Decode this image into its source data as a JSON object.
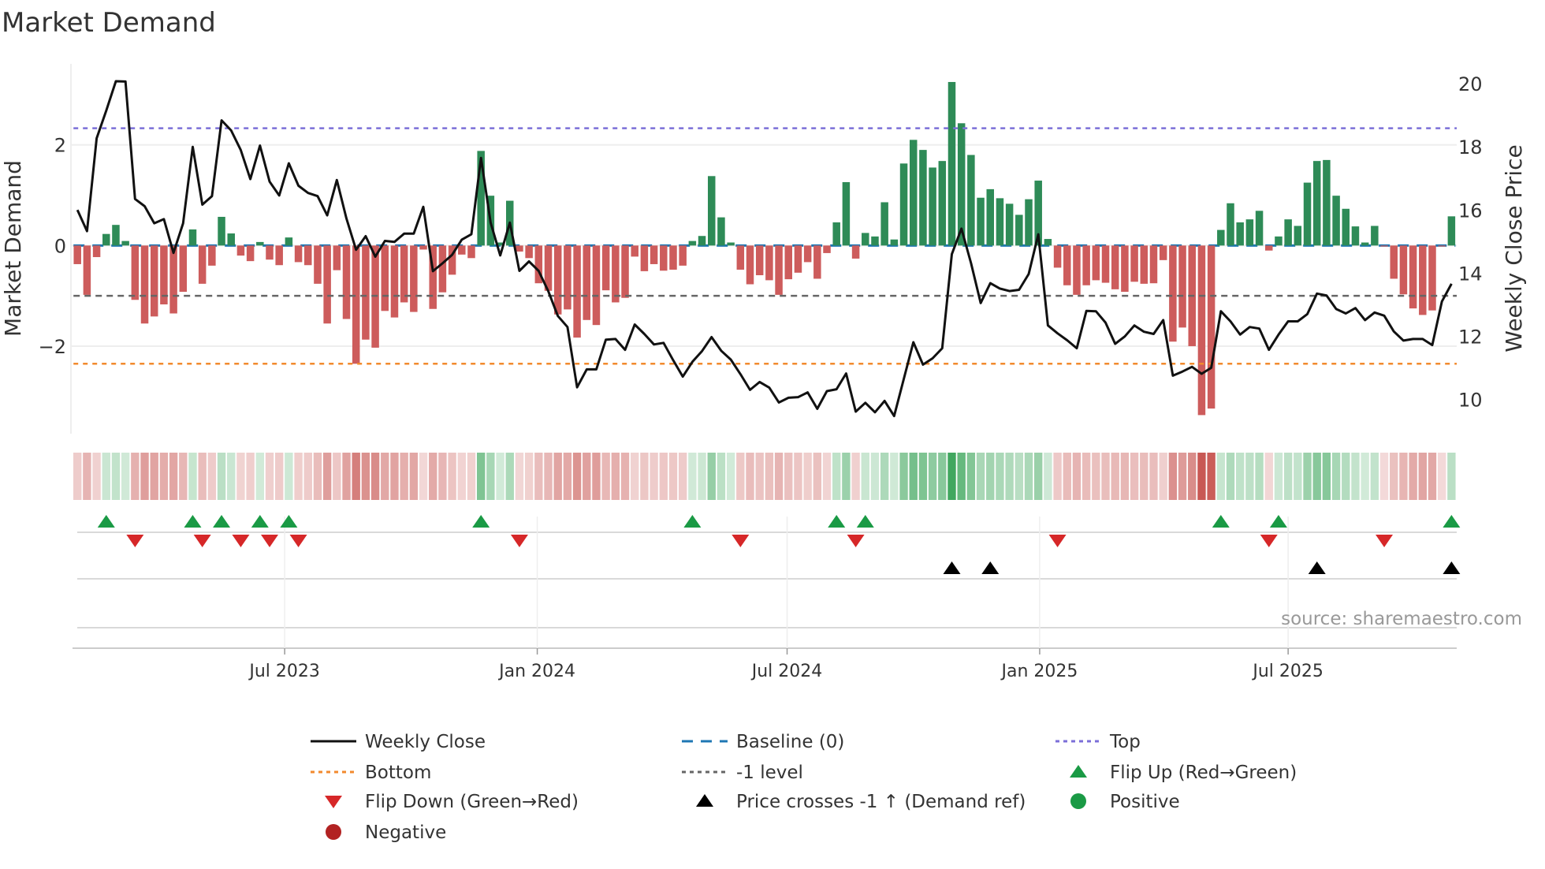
{
  "chart_data": {
    "type": "bar",
    "title": "Market Demand",
    "ylabel": "Market Demand",
    "y2label": "Weekly Close Price",
    "source": "source: sharemaestro.com",
    "frequency": "weekly",
    "start_date": "2023-01-31",
    "ylim": [
      -3.74,
      3.61
    ],
    "y2lim": [
      8.91,
      20.63
    ],
    "yticks": [
      {
        "v": 2,
        "label": "2"
      },
      {
        "v": 0,
        "label": "0"
      },
      {
        "v": -2,
        "label": "−2"
      }
    ],
    "y2ticks": [
      {
        "v": 20,
        "label": "20"
      },
      {
        "v": 18,
        "label": "18"
      },
      {
        "v": 16,
        "label": "16"
      },
      {
        "v": 14,
        "label": "14"
      },
      {
        "v": 12,
        "label": "12"
      },
      {
        "v": 10,
        "label": "10"
      }
    ],
    "xticks": [
      {
        "date": "2023-07-01",
        "label": "Jul 2023"
      },
      {
        "date": "2024-01-01",
        "label": "Jan 2024"
      },
      {
        "date": "2024-07-01",
        "label": "Jul 2024"
      },
      {
        "date": "2025-01-01",
        "label": "Jan 2025"
      },
      {
        "date": "2025-07-01",
        "label": "Jul 2025"
      }
    ],
    "levels": {
      "top": 2.33,
      "bottom": -2.35,
      "minus_one": -1,
      "baseline": 0
    },
    "grid": "horizontal",
    "legend_position": "bottom",
    "colors": {
      "positive": "#2e8b57",
      "negative": "#cd5c5c",
      "price": "#111111",
      "baseline": "#1f77b4",
      "top": "#7b6fd8",
      "bottom": "#f28a2e",
      "minus_one": "#666666",
      "flip_up": "#1a9a45",
      "flip_down": "#d62728",
      "cross": "#000000",
      "positive_dot": "#1a9a45",
      "negative_dot": "#b22222"
    },
    "demand": [
      -0.37,
      -0.98,
      -0.23,
      0.23,
      0.41,
      0.09,
      -1.08,
      -1.55,
      -1.41,
      -1.17,
      -1.35,
      -0.92,
      0.32,
      -0.76,
      -0.4,
      0.57,
      0.24,
      -0.2,
      -0.31,
      0.07,
      -0.28,
      -0.39,
      0.16,
      -0.33,
      -0.39,
      -0.76,
      -1.55,
      -0.49,
      -1.46,
      -2.35,
      -1.87,
      -2.03,
      -1.3,
      -1.43,
      -1.13,
      -1.32,
      -0.08,
      -1.26,
      -0.93,
      -0.58,
      -0.18,
      -0.25,
      1.88,
      0.99,
      0.06,
      0.89,
      -0.12,
      -0.25,
      -0.75,
      -0.9,
      -1.37,
      -1.27,
      -1.83,
      -1.48,
      -1.58,
      -0.89,
      -1.13,
      -1.04,
      -0.22,
      -0.51,
      -0.37,
      -0.5,
      -0.48,
      -0.4,
      0.09,
      0.19,
      1.38,
      0.56,
      0.06,
      -0.48,
      -0.77,
      -0.59,
      -0.69,
      -0.98,
      -0.67,
      -0.54,
      -0.33,
      -0.66,
      -0.15,
      0.46,
      1.26,
      -0.26,
      0.25,
      0.18,
      0.86,
      0.12,
      1.63,
      2.1,
      1.9,
      1.55,
      1.68,
      3.25,
      2.43,
      1.8,
      0.95,
      1.12,
      0.94,
      0.83,
      0.61,
      0.92,
      1.29,
      0.13,
      -0.44,
      -0.79,
      -0.98,
      -0.79,
      -0.69,
      -0.74,
      -0.87,
      -0.92,
      -0.72,
      -0.76,
      -0.75,
      -0.29,
      -1.91,
      -1.63,
      -2.0,
      -3.37,
      -3.24,
      0.31,
      0.84,
      0.46,
      0.52,
      0.69,
      -0.1,
      0.18,
      0.52,
      0.39,
      1.25,
      1.68,
      1.7,
      0.99,
      0.73,
      0.38,
      0.06,
      0.39,
      -0.02,
      -0.66,
      -0.97,
      -1.25,
      -1.38,
      -1.29,
      -0.02,
      0.58
    ],
    "price": [
      16.0,
      15.33,
      18.27,
      19.15,
      20.08,
      20.07,
      16.35,
      16.12,
      15.58,
      15.71,
      14.64,
      15.58,
      18.0,
      16.17,
      16.44,
      18.84,
      18.52,
      17.9,
      16.98,
      18.04,
      16.9,
      16.46,
      17.48,
      16.77,
      16.54,
      16.44,
      15.83,
      16.95,
      15.73,
      14.74,
      15.17,
      14.52,
      15.02,
      14.99,
      15.25,
      15.25,
      16.1,
      14.06,
      14.31,
      14.58,
      15.06,
      15.23,
      17.65,
      15.6,
      14.56,
      15.6,
      14.07,
      14.37,
      14.07,
      13.43,
      12.64,
      12.29,
      10.38,
      10.95,
      10.95,
      11.89,
      11.91,
      11.57,
      12.37,
      12.07,
      11.74,
      11.79,
      11.24,
      10.72,
      11.19,
      11.53,
      11.97,
      11.54,
      11.26,
      10.8,
      10.3,
      10.55,
      10.37,
      9.9,
      10.05,
      10.07,
      10.22,
      9.7,
      10.26,
      10.32,
      10.82,
      9.61,
      9.89,
      9.59,
      9.95,
      9.47,
      10.64,
      11.81,
      11.1,
      11.3,
      11.62,
      14.6,
      15.41,
      14.31,
      13.05,
      13.68,
      13.51,
      13.43,
      13.47,
      13.97,
      15.23,
      12.34,
      12.09,
      11.87,
      11.62,
      12.8,
      12.79,
      12.43,
      11.76,
      11.99,
      12.34,
      12.14,
      12.07,
      12.51,
      10.75,
      10.88,
      11.03,
      10.81,
      11.0,
      12.79,
      12.47,
      12.05,
      12.29,
      12.24,
      11.57,
      12.05,
      12.47,
      12.47,
      12.7,
      13.35,
      13.29,
      12.86,
      12.72,
      12.89,
      12.51,
      12.75,
      12.65,
      12.15,
      11.86,
      11.91,
      11.91,
      11.72,
      13.1,
      13.66
    ],
    "legend": [
      {
        "key": "price",
        "label": "Weekly Close"
      },
      {
        "key": "baseline",
        "label": "Baseline (0)"
      },
      {
        "key": "top",
        "label": "Top"
      },
      {
        "key": "bottom",
        "label": "Bottom"
      },
      {
        "key": "minus_one",
        "label": "-1 level"
      },
      {
        "key": "flip_up",
        "label": "Flip Up (Red→Green)"
      },
      {
        "key": "flip_down",
        "label": "Flip Down (Green→Red)"
      },
      {
        "key": "cross",
        "label": "Price crosses -1 ↑ (Demand ref)"
      },
      {
        "key": "positive_dot",
        "label": "Positive"
      },
      {
        "key": "negative_dot",
        "label": "Negative"
      }
    ]
  }
}
